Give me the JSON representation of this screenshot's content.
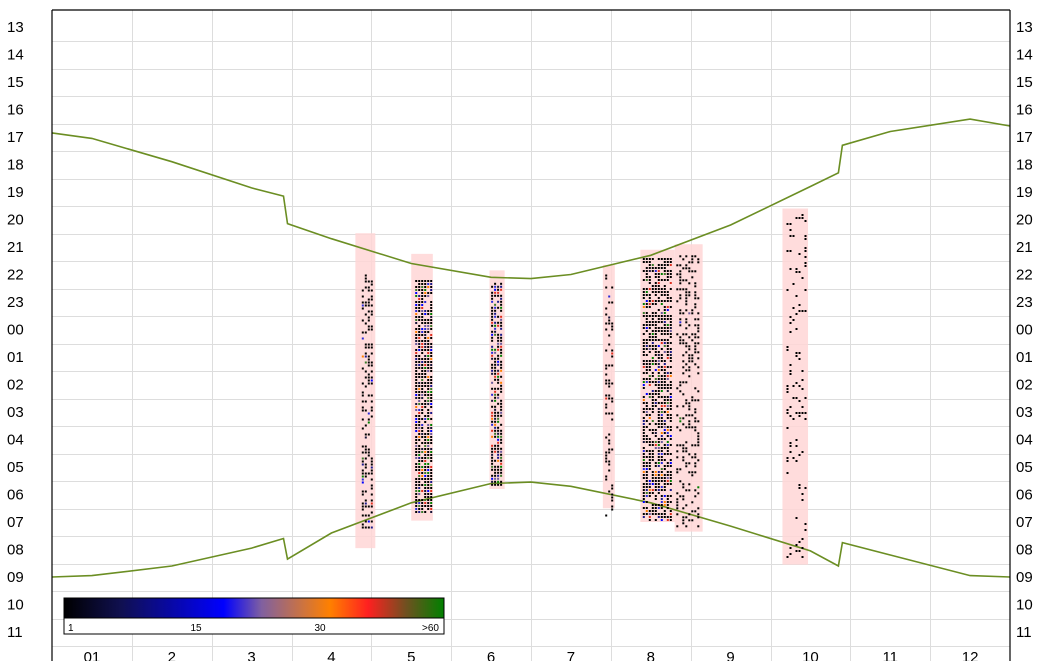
{
  "chart_data": {
    "type": "heatmap",
    "title": "",
    "xlabel": "",
    "ylabel": "",
    "x_tick_labels": [
      "01",
      "2",
      "3",
      "4",
      "5",
      "6",
      "7",
      "8",
      "9",
      "10",
      "11",
      "12"
    ],
    "y_tick_labels": [
      "13",
      "14",
      "15",
      "16",
      "17",
      "18",
      "19",
      "20",
      "21",
      "22",
      "23",
      "00",
      "01",
      "02",
      "03",
      "04",
      "05",
      "06",
      "07",
      "08",
      "09",
      "10",
      "11"
    ],
    "y_axis_labels_both_sides": true,
    "grid": true,
    "y_range_hours": [
      12.5,
      35.5
    ],
    "x_range_months": [
      0.5,
      12.5
    ],
    "sunset_curve": [
      {
        "month": 0.5,
        "hour": 16.85
      },
      {
        "month": 1.0,
        "hour": 17.05
      },
      {
        "month": 2.0,
        "hour": 17.9
      },
      {
        "month": 3.0,
        "hour": 18.85
      },
      {
        "month": 3.4,
        "hour": 19.15
      },
      {
        "month": 3.45,
        "hour": 20.15
      },
      {
        "month": 4.0,
        "hour": 20.7
      },
      {
        "month": 5.0,
        "hour": 21.6
      },
      {
        "month": 6.0,
        "hour": 22.1
      },
      {
        "month": 6.5,
        "hour": 22.15
      },
      {
        "month": 7.0,
        "hour": 22.0
      },
      {
        "month": 8.0,
        "hour": 21.3
      },
      {
        "month": 9.0,
        "hour": 20.2
      },
      {
        "month": 10.0,
        "hour": 18.8
      },
      {
        "month": 10.35,
        "hour": 18.3
      },
      {
        "month": 10.4,
        "hour": 17.3
      },
      {
        "month": 11.0,
        "hour": 16.8
      },
      {
        "month": 12.0,
        "hour": 16.35
      },
      {
        "month": 12.5,
        "hour": 16.6
      }
    ],
    "sunrise_curve": [
      {
        "month": 0.5,
        "hour": 33.0
      },
      {
        "month": 1.0,
        "hour": 32.95
      },
      {
        "month": 2.0,
        "hour": 32.6
      },
      {
        "month": 3.0,
        "hour": 31.95
      },
      {
        "month": 3.4,
        "hour": 31.6
      },
      {
        "month": 3.45,
        "hour": 32.35
      },
      {
        "month": 4.0,
        "hour": 31.4
      },
      {
        "month": 5.0,
        "hour": 30.3
      },
      {
        "month": 6.0,
        "hour": 29.6
      },
      {
        "month": 6.5,
        "hour": 29.55
      },
      {
        "month": 7.0,
        "hour": 29.7
      },
      {
        "month": 8.0,
        "hour": 30.3
      },
      {
        "month": 9.0,
        "hour": 31.15
      },
      {
        "month": 10.0,
        "hour": 32.05
      },
      {
        "month": 10.35,
        "hour": 32.6
      },
      {
        "month": 10.4,
        "hour": 31.75
      },
      {
        "month": 11.0,
        "hour": 32.2
      },
      {
        "month": 12.0,
        "hour": 32.95
      },
      {
        "month": 12.5,
        "hour": 33.0
      }
    ],
    "observation_periods": [
      {
        "x_start": 4.3,
        "x_end": 4.55,
        "hour_start": 20.5,
        "hour_end": 31.95
      },
      {
        "x_start": 5.0,
        "x_end": 5.27,
        "hour_start": 21.25,
        "hour_end": 30.95
      },
      {
        "x_start": 5.98,
        "x_end": 6.17,
        "hour_start": 21.85,
        "hour_end": 29.8
      },
      {
        "x_start": 7.4,
        "x_end": 7.55,
        "hour_start": 21.65,
        "hour_end": 30.5
      },
      {
        "x_start": 7.87,
        "x_end": 8.3,
        "hour_start": 21.1,
        "hour_end": 31.0
      },
      {
        "x_start": 8.3,
        "x_end": 8.65,
        "hour_start": 20.9,
        "hour_end": 31.35
      },
      {
        "x_start": 9.65,
        "x_end": 9.97,
        "hour_start": 19.6,
        "hour_end": 32.55
      }
    ],
    "activity_bands": [
      {
        "x_start": 4.38,
        "x_end": 4.52,
        "hour_start": 22.0,
        "hour_end": 31.2,
        "density": 0.45,
        "intensity": 0.1
      },
      {
        "x_start": 5.05,
        "x_end": 5.25,
        "hour_start": 22.2,
        "hour_end": 30.6,
        "density": 0.85,
        "intensity": 0.4
      },
      {
        "x_start": 6.0,
        "x_end": 6.15,
        "hour_start": 22.3,
        "hour_end": 29.7,
        "density": 0.8,
        "intensity": 0.45
      },
      {
        "x_start": 7.43,
        "x_end": 7.53,
        "hour_start": 22.0,
        "hour_end": 30.8,
        "density": 0.3,
        "intensity": 0.05
      },
      {
        "x_start": 7.9,
        "x_end": 8.27,
        "hour_start": 21.4,
        "hour_end": 31.0,
        "density": 0.7,
        "intensity": 0.25
      },
      {
        "x_start": 8.32,
        "x_end": 8.62,
        "hour_start": 21.3,
        "hour_end": 31.2,
        "density": 0.3,
        "intensity": 0.03
      },
      {
        "x_start": 9.7,
        "x_end": 9.95,
        "hour_start": 19.8,
        "hour_end": 32.3,
        "density": 0.12,
        "intensity": 0.0
      }
    ],
    "color_scale": {
      "stops": [
        "#000000",
        "#0000ff",
        "#ff8000",
        "#ff0000",
        "#008000"
      ],
      "labels": [
        "1",
        "15",
        "30",
        ">60"
      ]
    }
  }
}
